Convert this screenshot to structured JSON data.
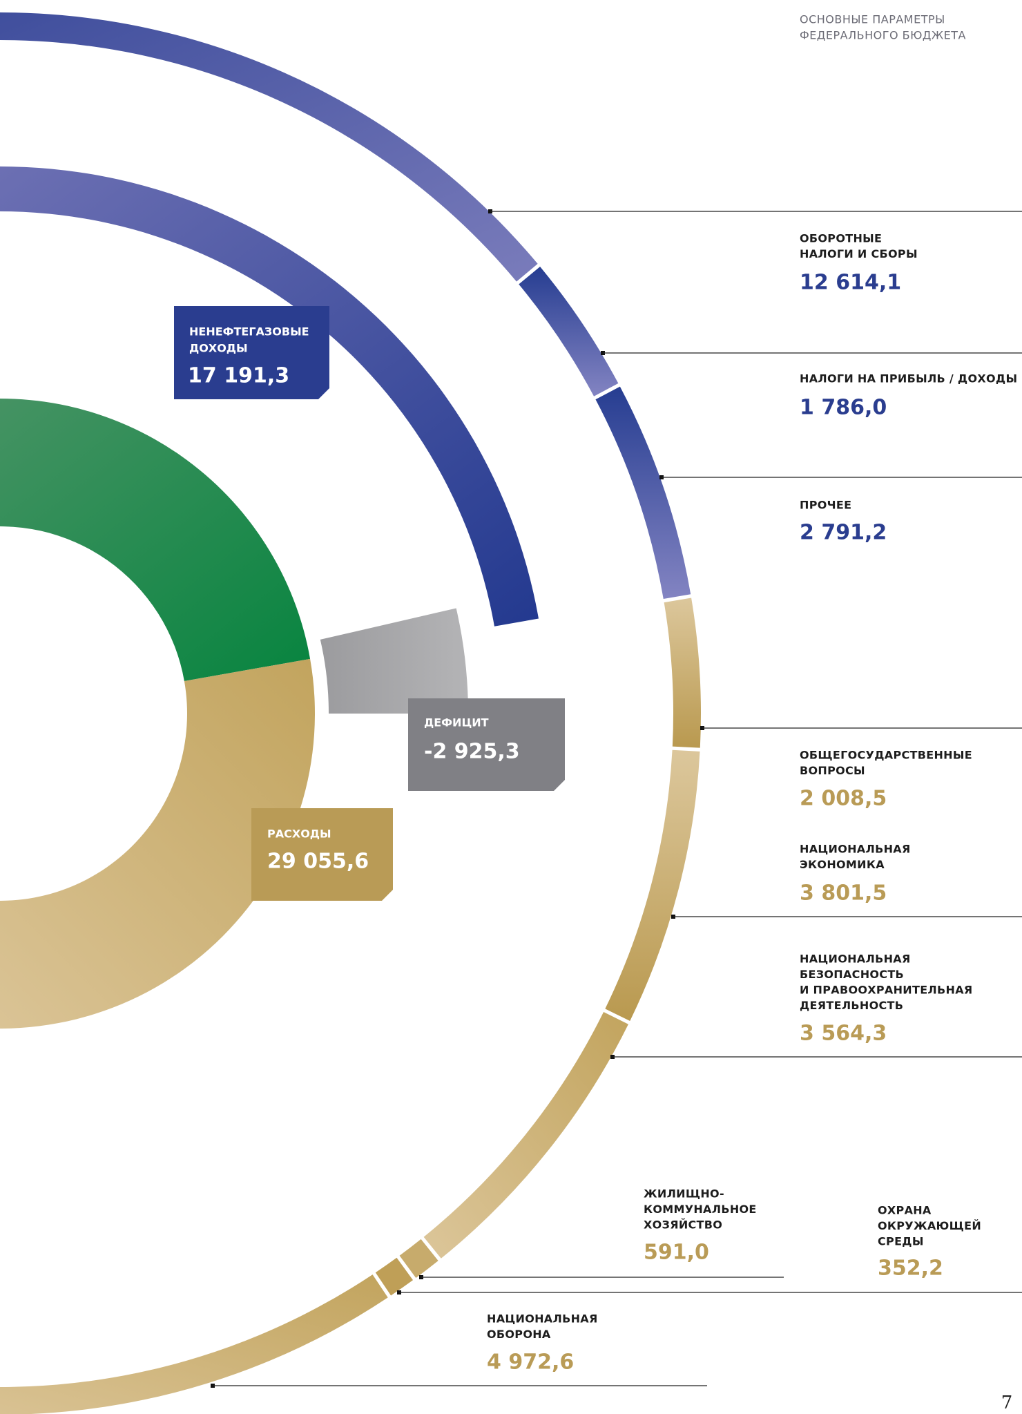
{
  "header": {
    "lines": [
      "ОСНОВНЫЕ ПАРАМЕТРЫ",
      "ФЕДЕРАЛЬНОГО БЮДЖЕТА"
    ]
  },
  "boxes": {
    "non_oil_gas": {
      "lines": [
        "НЕНЕФТЕГАЗОВЫЕ",
        "ДОХОДЫ"
      ],
      "value": "17 191,3"
    },
    "deficit": {
      "lines": [
        "ДЕФИЦИТ"
      ],
      "value": "-2 925,3"
    },
    "expenses": {
      "lines": [
        "РАСХОДЫ"
      ],
      "value": "29 055,6"
    }
  },
  "labels": [
    {
      "lines": [
        "ОБОРОТНЫЕ",
        "НАЛОГИ И СБОРЫ"
      ],
      "value": "12 614,1"
    },
    {
      "lines": [
        "НАЛОГИ НА ПРИБЫЛЬ / ДОХОДЫ"
      ],
      "value": "1 786,0"
    },
    {
      "lines": [
        "ПРОЧЕЕ"
      ],
      "value": "2 791,2"
    },
    {
      "lines": [
        "ОБЩЕГОСУДАРСТВЕННЫЕ",
        "ВОПРОСЫ"
      ],
      "value": "2 008,5"
    },
    {
      "lines": [
        "НАЦИОНАЛЬНАЯ",
        "ЭКОНОМИКА"
      ],
      "value": "3 801,5"
    },
    {
      "lines": [
        "НАЦИОНАЛЬНАЯ",
        "БЕЗОПАСНОСТЬ",
        "И ПРАВООХРАНИТЕЛЬНАЯ",
        "ДЕЯТЕЛЬНОСТЬ"
      ],
      "value": "3 564,3"
    },
    {
      "lines": [
        "ЖИЛИЩНО-",
        "КОММУНАЛЬНОЕ",
        "ХОЗЯЙСТВО"
      ],
      "value": "591,0"
    },
    {
      "lines": [
        "ОХРАНА",
        "ОКРУЖАЮЩЕЙ",
        "СРЕДЫ"
      ],
      "value": "352,2"
    },
    {
      "lines": [
        "НАЦИОНАЛЬНАЯ",
        "ОБОРОНА"
      ],
      "value": "4 972,6"
    }
  ],
  "page_number": "7"
}
